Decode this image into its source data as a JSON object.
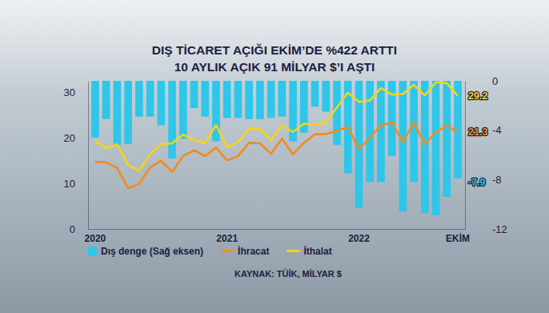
{
  "chart_data": {
    "type": "bar",
    "title": "DIŞ TİCARET AÇIĞI EKİM’DE %422 ARTTI",
    "subtitle": "10 AYLIK AÇIK 91 MİLYAR $’I AŞTI",
    "source": "KAYNAK: TÜİK, MİLYAR $",
    "categories": [
      "2020",
      null,
      null,
      null,
      null,
      null,
      null,
      null,
      null,
      null,
      null,
      null,
      "2021",
      null,
      null,
      null,
      null,
      null,
      null,
      null,
      null,
      null,
      null,
      null,
      "2022",
      null,
      null,
      null,
      null,
      null,
      null,
      null,
      null,
      "EKİM"
    ],
    "series": [
      {
        "name": "Dış denge (Sağ eksen)",
        "type": "bar",
        "axis": "y2",
        "color": "#2ec6ea",
        "values": [
          -4.6,
          -3.1,
          -5.2,
          -5.1,
          -2.9,
          -2.9,
          -3.6,
          -6.3,
          -4.7,
          -2.2,
          -2.9,
          -4.9,
          -3.0,
          -3.0,
          -3.1,
          -3.1,
          -3.0,
          -2.9,
          -4.9,
          -4.2,
          -2.1,
          -2.5,
          -5.2,
          -7.5,
          -10.3,
          -8.2,
          -8.2,
          -6.1,
          -10.6,
          -8.2,
          -10.7,
          -10.9,
          -9.4,
          -7.9
        ],
        "value_labels": [
          null,
          null,
          null,
          null,
          null,
          null,
          null,
          null,
          null,
          null,
          null,
          null,
          null,
          null,
          null,
          null,
          null,
          null,
          null,
          null,
          null,
          null,
          null,
          null,
          null,
          null,
          null,
          null,
          null,
          null,
          null,
          null,
          null,
          "-7.9"
        ]
      },
      {
        "name": "İhracat",
        "type": "line",
        "color": "#f28c1e",
        "values": [
          14.7,
          14.6,
          13.4,
          8.9,
          9.9,
          13.5,
          15.0,
          12.5,
          16.0,
          17.3,
          16.0,
          17.9,
          15.0,
          16.0,
          18.9,
          18.8,
          16.5,
          19.8,
          16.4,
          18.9,
          20.8,
          20.8,
          21.5,
          22.4,
          17.6,
          20.0,
          22.7,
          23.4,
          19.0,
          23.4,
          18.6,
          21.3,
          22.6,
          21.3
        ],
        "value_labels": [
          null,
          null,
          null,
          null,
          null,
          null,
          null,
          null,
          null,
          null,
          null,
          null,
          null,
          null,
          null,
          null,
          null,
          null,
          null,
          null,
          null,
          null,
          null,
          null,
          null,
          null,
          null,
          null,
          null,
          null,
          null,
          null,
          null,
          "21.3"
        ]
      },
      {
        "name": "İthalat",
        "type": "line",
        "color": "#f7d417",
        "values": [
          19.3,
          17.7,
          18.6,
          14.0,
          12.8,
          16.4,
          18.6,
          18.8,
          20.7,
          19.5,
          18.9,
          22.8,
          18.0,
          19.0,
          22.0,
          21.9,
          19.5,
          22.7,
          21.3,
          23.1,
          22.9,
          23.3,
          26.7,
          29.9,
          27.9,
          28.2,
          30.9,
          29.5,
          29.6,
          31.6,
          29.3,
          32.2,
          32.0,
          29.2
        ],
        "value_labels": [
          null,
          null,
          null,
          null,
          null,
          null,
          null,
          null,
          null,
          null,
          null,
          null,
          null,
          null,
          null,
          null,
          null,
          null,
          null,
          null,
          null,
          null,
          null,
          null,
          null,
          null,
          null,
          null,
          null,
          null,
          null,
          null,
          null,
          "29.2"
        ]
      }
    ],
    "ylim": [
      0,
      32.5
    ],
    "yticks": [
      0,
      10,
      20,
      30
    ],
    "y2lim": [
      -12,
      0
    ],
    "y2ticks": [
      0,
      -4,
      -8,
      -12
    ],
    "grid": false,
    "legend": "bottom"
  }
}
